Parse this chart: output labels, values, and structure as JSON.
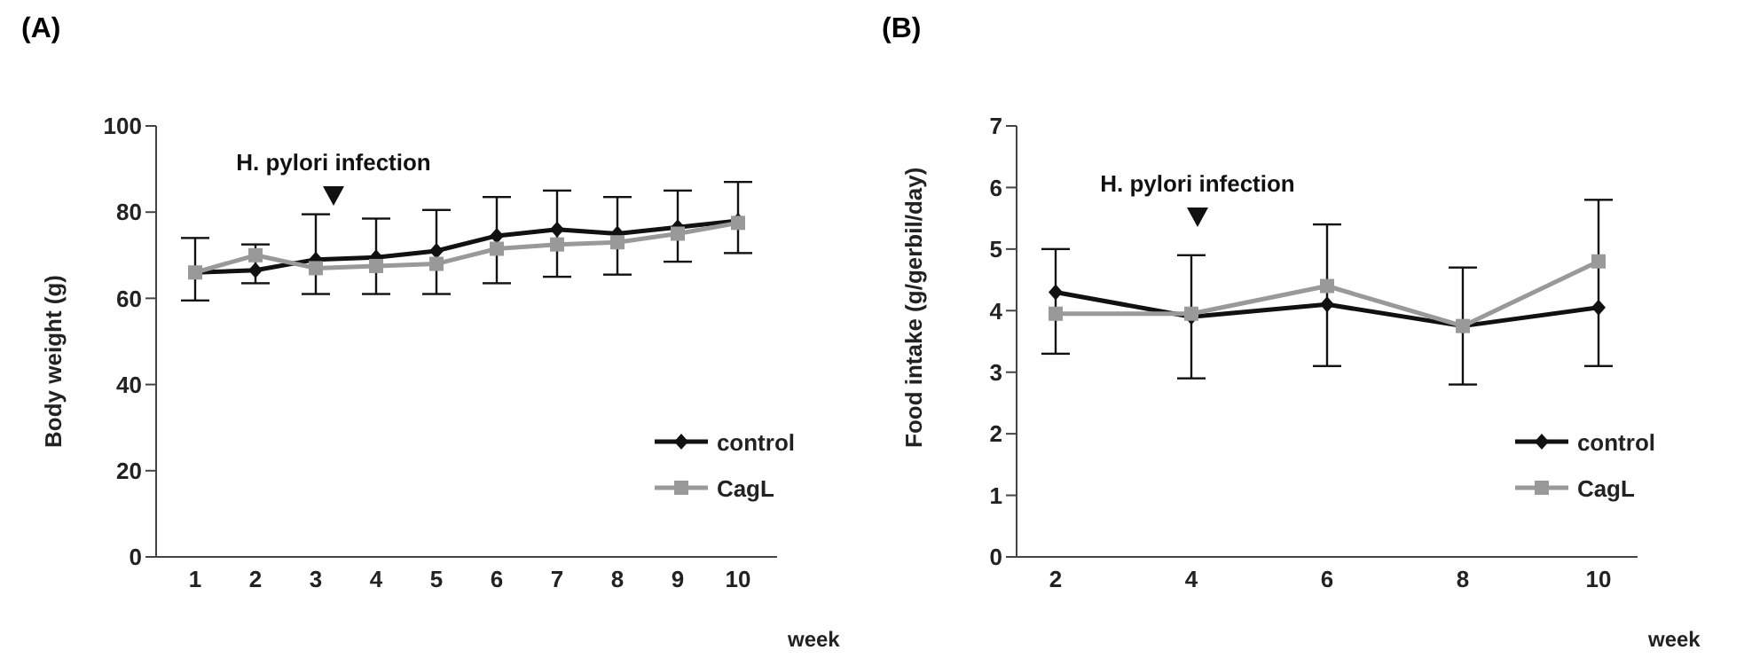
{
  "chart_data": [
    {
      "type": "line",
      "title": "(A)",
      "xlabel": "week",
      "ylabel": "Body weight (g)",
      "categories": [
        "1",
        "2",
        "3",
        "4",
        "5",
        "6",
        "7",
        "8",
        "9",
        "10"
      ],
      "ylim": [
        0,
        100
      ],
      "yticks": [
        0,
        20,
        40,
        60,
        80,
        100
      ],
      "grid": false,
      "legend": "bottom right",
      "annotations": [
        "H. pylori infection"
      ],
      "series": [
        {
          "name": "control",
          "color": "#111111",
          "marker": "diamond",
          "values": [
            66,
            66.5,
            69,
            69.5,
            71,
            74.5,
            76,
            75,
            76.5,
            78
          ],
          "errors": [
            [
              59.5,
              74
            ],
            [
              63.5,
              72.5
            ],
            [
              61,
              79.5
            ],
            [
              61,
              78.5
            ],
            [
              61,
              80.5
            ],
            [
              63.5,
              83.5
            ],
            [
              65,
              85
            ],
            [
              65.5,
              83.5
            ],
            [
              68.5,
              85
            ],
            [
              70.5,
              87
            ]
          ]
        },
        {
          "name": "CagL",
          "color": "#999999",
          "marker": "square",
          "values": [
            66,
            70,
            67,
            67.5,
            68,
            71.5,
            72.5,
            73,
            75,
            77.5
          ]
        }
      ]
    },
    {
      "type": "line",
      "title": "(B)",
      "xlabel": "week",
      "ylabel": "Food intake (g/gerbil/day)",
      "categories": [
        "2",
        "4",
        "6",
        "8",
        "10"
      ],
      "ylim": [
        0,
        7
      ],
      "yticks": [
        0,
        1,
        2,
        3,
        4,
        5,
        6,
        7
      ],
      "grid": false,
      "legend": "bottom right",
      "annotations": [
        "H. pylori infection"
      ],
      "series": [
        {
          "name": "control",
          "color": "#111111",
          "marker": "diamond",
          "values": [
            4.3,
            3.9,
            4.1,
            3.75,
            4.05
          ],
          "errors": [
            [
              3.3,
              5.0
            ],
            [
              2.9,
              4.9
            ],
            [
              3.1,
              5.4
            ],
            [
              2.8,
              4.7
            ],
            [
              3.1,
              5.8
            ]
          ]
        },
        {
          "name": "CagL",
          "color": "#999999",
          "marker": "square",
          "values": [
            3.95,
            3.95,
            4.4,
            3.75,
            4.8
          ]
        }
      ]
    }
  ]
}
